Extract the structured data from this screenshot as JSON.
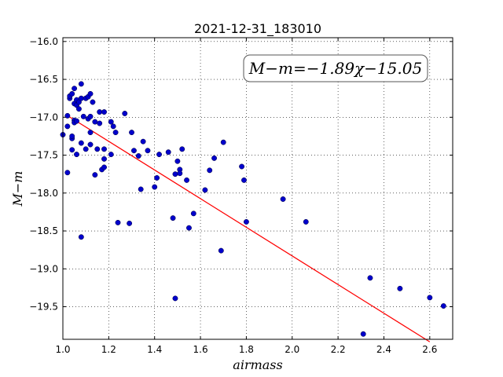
{
  "chart_data": {
    "type": "scatter",
    "title": "2021-12-31_183010",
    "xlabel": "airmass",
    "ylabel": "M−m",
    "xlim": [
      1.0,
      2.7
    ],
    "ylim": [
      -15.95,
      -19.93
    ],
    "y_inverted": true,
    "grid": true,
    "annotation": "M−m=−1.89χ−15.05",
    "x_ticks": [
      1.0,
      1.2,
      1.4,
      1.6,
      1.8,
      2.0,
      2.2,
      2.4,
      2.6
    ],
    "y_ticks": [
      -16.0,
      -16.5,
      -17.0,
      -17.5,
      -18.0,
      -18.5,
      -19.0,
      -19.5
    ],
    "x_tick_labels": [
      "1.0",
      "1.2",
      "1.4",
      "1.6",
      "1.8",
      "2.0",
      "2.2",
      "2.4",
      "2.6"
    ],
    "y_tick_labels": [
      "−16.0",
      "−16.5",
      "−17.0",
      "−17.5",
      "−18.0",
      "−18.5",
      "−19.0",
      "−19.5"
    ],
    "point_color": "#0000cc",
    "line_color": "#ff0000",
    "fit": {
      "slope": -1.89,
      "intercept": -15.05,
      "x_range": [
        1.03,
        2.6
      ]
    },
    "points": [
      [
        1.0,
        -17.23
      ],
      [
        1.02,
        -17.12
      ],
      [
        1.02,
        -16.98
      ],
      [
        1.02,
        -17.73
      ],
      [
        1.03,
        -16.75
      ],
      [
        1.03,
        -16.72
      ],
      [
        1.04,
        -16.69
      ],
      [
        1.04,
        -17.28
      ],
      [
        1.04,
        -17.43
      ],
      [
        1.04,
        -17.25
      ],
      [
        1.05,
        -17.04
      ],
      [
        1.05,
        -17.07
      ],
      [
        1.05,
        -16.82
      ],
      [
        1.05,
        -16.62
      ],
      [
        1.06,
        -16.84
      ],
      [
        1.06,
        -16.77
      ],
      [
        1.06,
        -17.05
      ],
      [
        1.06,
        -17.49
      ],
      [
        1.07,
        -16.89
      ],
      [
        1.07,
        -16.8
      ],
      [
        1.08,
        -16.56
      ],
      [
        1.08,
        -16.75
      ],
      [
        1.08,
        -17.34
      ],
      [
        1.08,
        -18.58
      ],
      [
        1.09,
        -16.99
      ],
      [
        1.1,
        -16.75
      ],
      [
        1.1,
        -17.42
      ],
      [
        1.11,
        -16.73
      ],
      [
        1.11,
        -17.02
      ],
      [
        1.12,
        -16.69
      ],
      [
        1.12,
        -16.99
      ],
      [
        1.12,
        -17.2
      ],
      [
        1.12,
        -17.36
      ],
      [
        1.13,
        -16.8
      ],
      [
        1.14,
        -17.06
      ],
      [
        1.14,
        -17.76
      ],
      [
        1.15,
        -17.42
      ],
      [
        1.16,
        -16.93
      ],
      [
        1.16,
        -17.08
      ],
      [
        1.17,
        -17.69
      ],
      [
        1.18,
        -16.93
      ],
      [
        1.18,
        -17.42
      ],
      [
        1.18,
        -17.66
      ],
      [
        1.18,
        -17.55
      ],
      [
        1.21,
        -17.06
      ],
      [
        1.21,
        -17.49
      ],
      [
        1.22,
        -17.12
      ],
      [
        1.23,
        -17.2
      ],
      [
        1.24,
        -18.39
      ],
      [
        1.27,
        -16.95
      ],
      [
        1.29,
        -18.4
      ],
      [
        1.3,
        -17.2
      ],
      [
        1.31,
        -17.44
      ],
      [
        1.33,
        -17.51
      ],
      [
        1.34,
        -17.95
      ],
      [
        1.35,
        -17.32
      ],
      [
        1.37,
        -17.44
      ],
      [
        1.4,
        -17.92
      ],
      [
        1.41,
        -17.8
      ],
      [
        1.42,
        -17.49
      ],
      [
        1.46,
        -17.46
      ],
      [
        1.48,
        -18.33
      ],
      [
        1.49,
        -17.75
      ],
      [
        1.49,
        -19.39
      ],
      [
        1.5,
        -17.58
      ],
      [
        1.51,
        -17.69
      ],
      [
        1.51,
        -17.74
      ],
      [
        1.52,
        -17.42
      ],
      [
        1.54,
        -17.83
      ],
      [
        1.55,
        -18.46
      ],
      [
        1.57,
        -18.27
      ],
      [
        1.62,
        -17.96
      ],
      [
        1.64,
        -17.7
      ],
      [
        1.66,
        -17.54
      ],
      [
        1.69,
        -18.76
      ],
      [
        1.7,
        -17.33
      ],
      [
        1.78,
        -17.65
      ],
      [
        1.79,
        -17.83
      ],
      [
        1.8,
        -18.38
      ],
      [
        1.96,
        -18.08
      ],
      [
        2.06,
        -18.38
      ],
      [
        2.31,
        -19.86
      ],
      [
        2.34,
        -19.12
      ],
      [
        2.47,
        -19.26
      ],
      [
        2.6,
        -19.38
      ],
      [
        2.66,
        -19.49
      ]
    ]
  }
}
